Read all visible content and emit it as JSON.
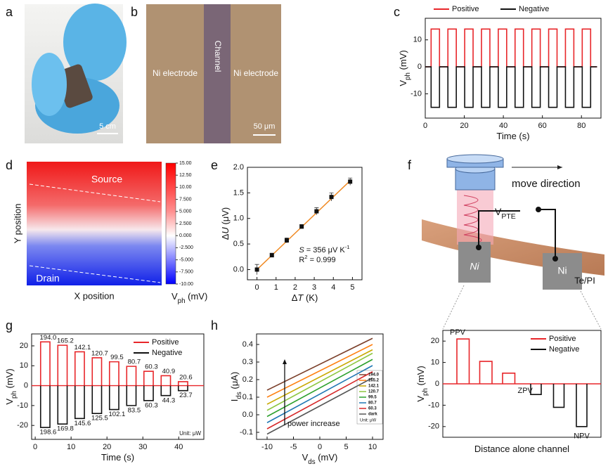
{
  "panel_labels": [
    "a",
    "b",
    "c",
    "d",
    "e",
    "f",
    "g",
    "h"
  ],
  "panel_a": {
    "scale_bar": "5 cm"
  },
  "panel_b": {
    "labels": [
      "Ni electrode",
      "Channel",
      "Ni electrode"
    ],
    "scale_bar": "50 μm"
  },
  "panel_d": {
    "labels": [
      "Source",
      "Drain"
    ],
    "xlabel": "X position",
    "ylabel": "Y position",
    "colorbar": {
      "lim": [
        -10,
        15
      ],
      "ticks": [
        {
          "value": 15,
          "label": "15.00"
        },
        {
          "value": 12.5,
          "label": "12.50"
        },
        {
          "value": 10,
          "label": "10.00"
        },
        {
          "value": 7.5,
          "label": "7.500"
        },
        {
          "value": 5,
          "label": "5.000"
        },
        {
          "value": 2.5,
          "label": "2.500"
        },
        {
          "value": 0,
          "label": "0.000"
        },
        {
          "value": -2.5,
          "label": "-2.500"
        },
        {
          "value": -5,
          "label": "-5.000"
        },
        {
          "value": -7.5,
          "label": "-7.500"
        },
        {
          "value": -10,
          "label": "-10.00"
        }
      ],
      "label": [
        {
          "text": "V"
        },
        {
          "text": "ph",
          "style": "sub"
        },
        {
          "text": " (mV)"
        }
      ]
    }
  },
  "panel_f": {
    "move": "move direction",
    "probe": [
      {
        "text": "V"
      },
      {
        "text": "PTE",
        "style": "sub"
      }
    ],
    "pads": [
      "Ni",
      "Ni"
    ],
    "substrate": "Te/PI"
  },
  "chart_data": [
    {
      "type": "line",
      "xlabel": [
        {
          "text": "Time (s)"
        }
      ],
      "ylabel": [
        {
          "text": "V"
        },
        {
          "text": "ph",
          "style": "sub"
        },
        {
          "text": " (mV)"
        }
      ],
      "xlim": [
        0,
        90
      ],
      "xticks": [
        0,
        20,
        40,
        60,
        80
      ],
      "ylim": [
        -19,
        18
      ],
      "yticks": [
        -10,
        0,
        10
      ],
      "legend": "top",
      "x": [
        0,
        3,
        3,
        7.3,
        7.3,
        11.6,
        11.6,
        15.9,
        15.9,
        20.2,
        20.2,
        24.5,
        24.5,
        28.8,
        28.8,
        33.1,
        33.1,
        37.4,
        37.4,
        41.7,
        41.7,
        46,
        46,
        50.3,
        50.3,
        54.6,
        54.6,
        58.9,
        58.9,
        63.2,
        63.2,
        67.5,
        67.5,
        71.8,
        71.8,
        76.1,
        76.1,
        80.4,
        80.4,
        84.7,
        84.7,
        88
      ],
      "series": [
        {
          "name": "Positive",
          "color": "#e8262a",
          "values": [
            0,
            0,
            14,
            14,
            0,
            0,
            14,
            14,
            0,
            0,
            14,
            14,
            0,
            0,
            14,
            14,
            0,
            0,
            14,
            14,
            0,
            0,
            14,
            14,
            0,
            0,
            14,
            14,
            0,
            0,
            14,
            14,
            0,
            0,
            14,
            14,
            0,
            0,
            14,
            14,
            0,
            0
          ]
        },
        {
          "name": "Negative",
          "color": "#111111",
          "values": [
            0,
            0,
            -15,
            -15,
            0,
            0,
            -15,
            -15,
            0,
            0,
            -15,
            -15,
            0,
            0,
            -15,
            -15,
            0,
            0,
            -15,
            -15,
            0,
            0,
            -15,
            -15,
            0,
            0,
            -15,
            -15,
            0,
            0,
            -15,
            -15,
            0,
            0,
            -15,
            -15,
            0,
            0,
            -15,
            -15,
            0,
            0
          ]
        }
      ]
    },
    {
      "type": "scatter",
      "xlabel": [
        {
          "text": "Δ"
        },
        {
          "text": "T",
          "style": "italic"
        },
        {
          "text": " (K)"
        }
      ],
      "ylabel": [
        {
          "text": "Δ"
        },
        {
          "text": "U",
          "style": "italic"
        },
        {
          "text": " (μV)"
        }
      ],
      "xlim": [
        -0.5,
        5.5
      ],
      "xticks": [
        0,
        1,
        2,
        3,
        4,
        5
      ],
      "ylim": [
        -0.2,
        2.0
      ],
      "yticks": [
        {
          "value": 0,
          "label": "0.0"
        },
        0.5,
        {
          "value": 1,
          "label": "1.0"
        },
        1.5,
        {
          "value": 2,
          "label": "2.0"
        }
      ],
      "x": [
        0,
        0.78,
        1.56,
        2.34,
        3.12,
        3.9,
        4.88
      ],
      "values": [
        0,
        0.28,
        0.57,
        0.84,
        1.14,
        1.42,
        1.72
      ],
      "errors": [
        0.1,
        0.04,
        0.05,
        0.04,
        0.07,
        0.08,
        0.07
      ],
      "color": "#111111",
      "fit": {
        "x": [
          0,
          4.9
        ],
        "values": [
          0,
          1.745
        ],
        "color": "#f08a24"
      },
      "annotations": [
        [
          {
            "text": "S",
            "style": "italic"
          },
          {
            "text": " = 356 μV K"
          },
          {
            "text": "-1",
            "style": "sup"
          }
        ],
        [
          {
            "text": "R"
          },
          {
            "text": "2",
            "style": "sup"
          },
          {
            "text": " = 0.999"
          }
        ]
      ]
    },
    {
      "type": "pulse",
      "xlabel": [
        {
          "text": "Time (s)"
        }
      ],
      "ylabel": [
        {
          "text": "V"
        },
        {
          "text": "ph",
          "style": "sub"
        },
        {
          "text": " (mV)"
        }
      ],
      "xlim": [
        -1,
        47
      ],
      "xticks": [
        0,
        10,
        20,
        30,
        40
      ],
      "ylim": [
        -27,
        26
      ],
      "yticks": [
        -20,
        -10,
        0,
        10,
        20
      ],
      "legend": "upper right",
      "note": "Unit: μW",
      "series": [
        {
          "name": "Positive",
          "color": "#e8262a",
          "x_start": [
            1.5,
            6.3,
            11.1,
            15.9,
            20.7,
            25.5,
            30.3,
            35.1,
            39.9
          ],
          "x_end": [
            4.1,
            8.9,
            13.7,
            18.5,
            23.3,
            28.1,
            32.9,
            37.7,
            42.5
          ],
          "values": [
            22,
            20.3,
            17,
            14,
            12,
            9.7,
            7.2,
            5,
            2
          ],
          "labels": [
            "194.0",
            "165.2",
            "142.1",
            "120.7",
            "99.5",
            "80.7",
            "60.3",
            "40.9",
            "20.6"
          ]
        },
        {
          "name": "Negative",
          "color": "#111111",
          "x_start": [
            1.5,
            6.3,
            11.1,
            15.9,
            20.7,
            25.5,
            30.3,
            35.1,
            39.9
          ],
          "x_end": [
            4.1,
            8.9,
            13.7,
            18.5,
            23.3,
            28.1,
            32.9,
            37.7,
            42.5
          ],
          "values": [
            -21,
            -19.3,
            -16.5,
            -14,
            -12,
            -10,
            -7.5,
            -5,
            -2.5
          ],
          "labels": [
            "198.6",
            "169.8",
            "145.6",
            "125.5",
            "102.1",
            "83.5",
            "60.3",
            "44.3",
            "23.7"
          ]
        }
      ]
    },
    {
      "type": "line",
      "xlabel": [
        {
          "text": "V"
        },
        {
          "text": "ds",
          "style": "sub"
        },
        {
          "text": " (mV)"
        }
      ],
      "ylabel": [
        {
          "text": "I"
        },
        {
          "text": "ds",
          "style": "sub"
        },
        {
          "text": " (μA)"
        }
      ],
      "xlim": [
        -12,
        12
      ],
      "xticks": [
        -10,
        -5,
        0,
        5,
        10
      ],
      "ylim": [
        -0.14,
        0.46
      ],
      "yticks": [
        -0.1,
        {
          "value": 0,
          "label": "0.0"
        },
        0.1,
        0.2,
        0.3,
        0.4
      ],
      "legend": "lower right",
      "note": "Unit: μW",
      "annotation": "power increase",
      "x": [
        -10,
        10
      ],
      "series": [
        {
          "name": "194.0",
          "color": "#7b3f2a",
          "values": [
            0.14,
            0.435
          ]
        },
        {
          "name": "165.2",
          "color": "#ff7f0e",
          "values": [
            0.1,
            0.4
          ]
        },
        {
          "name": "142.1",
          "color": "#c8a800",
          "values": [
            0.06,
            0.37
          ]
        },
        {
          "name": "120.7",
          "color": "#8dc63f",
          "values": [
            0.025,
            0.35
          ]
        },
        {
          "name": "99.5",
          "color": "#2ca02c",
          "values": [
            -0.01,
            0.315
          ]
        },
        {
          "name": "80.7",
          "color": "#1f77b4",
          "values": [
            -0.045,
            0.28
          ]
        },
        {
          "name": "60.3",
          "color": "#d62728",
          "values": [
            -0.08,
            0.245
          ]
        },
        {
          "name": "dark",
          "color": "#555555",
          "values": [
            -0.11,
            0.21
          ]
        }
      ]
    },
    {
      "type": "pulse",
      "xlabel": [
        {
          "text": "Distance alone channel"
        }
      ],
      "ylabel": [
        {
          "text": "V"
        },
        {
          "text": "ph",
          "style": "sub"
        },
        {
          "text": " (mV)"
        }
      ],
      "xlim": [
        0,
        9
      ],
      "ylim": [
        -25,
        25
      ],
      "yticks": [
        -20,
        -10,
        0,
        10,
        20
      ],
      "legend": "upper right",
      "annotations": [
        "PPV",
        "ZPV",
        "NPV"
      ],
      "series": [
        {
          "name": "Positive",
          "color": "#e8262a",
          "x_start": [
            0.8,
            2.1,
            3.4
          ],
          "x_end": [
            1.5,
            2.8,
            4.1
          ],
          "values": [
            21,
            10.5,
            5
          ]
        },
        {
          "name": "Negative",
          "color": "#111111",
          "x_start": [
            5.0,
            6.3,
            7.6
          ],
          "x_end": [
            5.6,
            6.9,
            8.2
          ],
          "values": [
            -5,
            -11,
            -20
          ]
        }
      ]
    }
  ]
}
